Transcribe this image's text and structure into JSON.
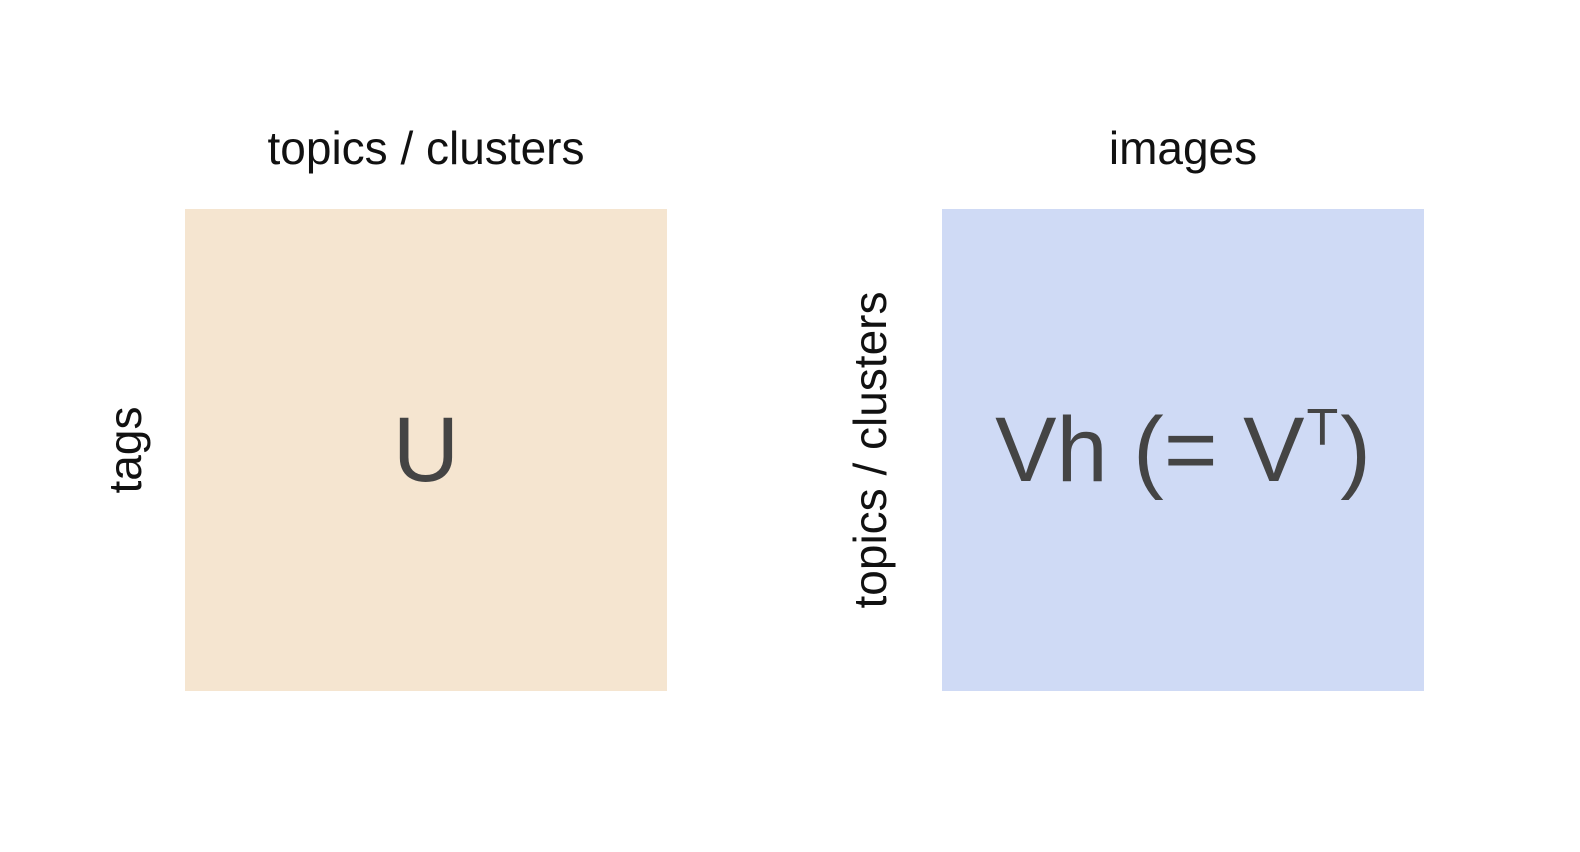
{
  "left_matrix": {
    "column_label": "topics / clusters",
    "row_label": "tags",
    "symbol": "U",
    "fill_color": "#f5e5d0"
  },
  "right_matrix": {
    "column_label": "images",
    "row_label": "topics / clusters",
    "symbol_main": "Vh (= V",
    "symbol_superscript": "T",
    "symbol_close": ")",
    "fill_color": "#cfdaf5"
  }
}
